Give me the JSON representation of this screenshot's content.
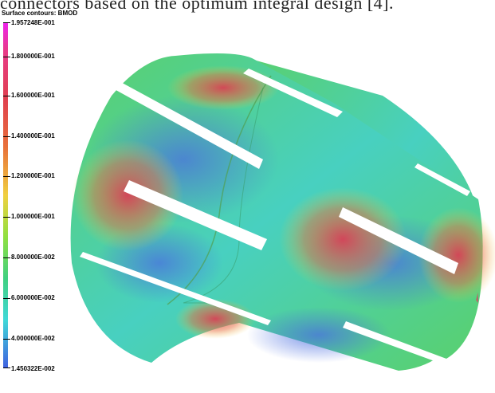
{
  "caption": "connectors based on the optimum integral design [4].",
  "colorbar": {
    "title": "Surface contours: BMOD",
    "labels": [
      "1.957248E-001",
      "1.800000E-001",
      "1.600000E-001",
      "1.400000E-001",
      "1.200000E-001",
      "1.000000E-001",
      "8.000000E-002",
      "6.000000E-002",
      "4.000000E-002",
      "1.450322E-002"
    ],
    "colors": {
      "max": "#ee22ee",
      "high": "#e04050",
      "mid": "#f0d040",
      "midlow": "#50d060",
      "low": "#40d8d8",
      "min": "#4060e0"
    }
  }
}
